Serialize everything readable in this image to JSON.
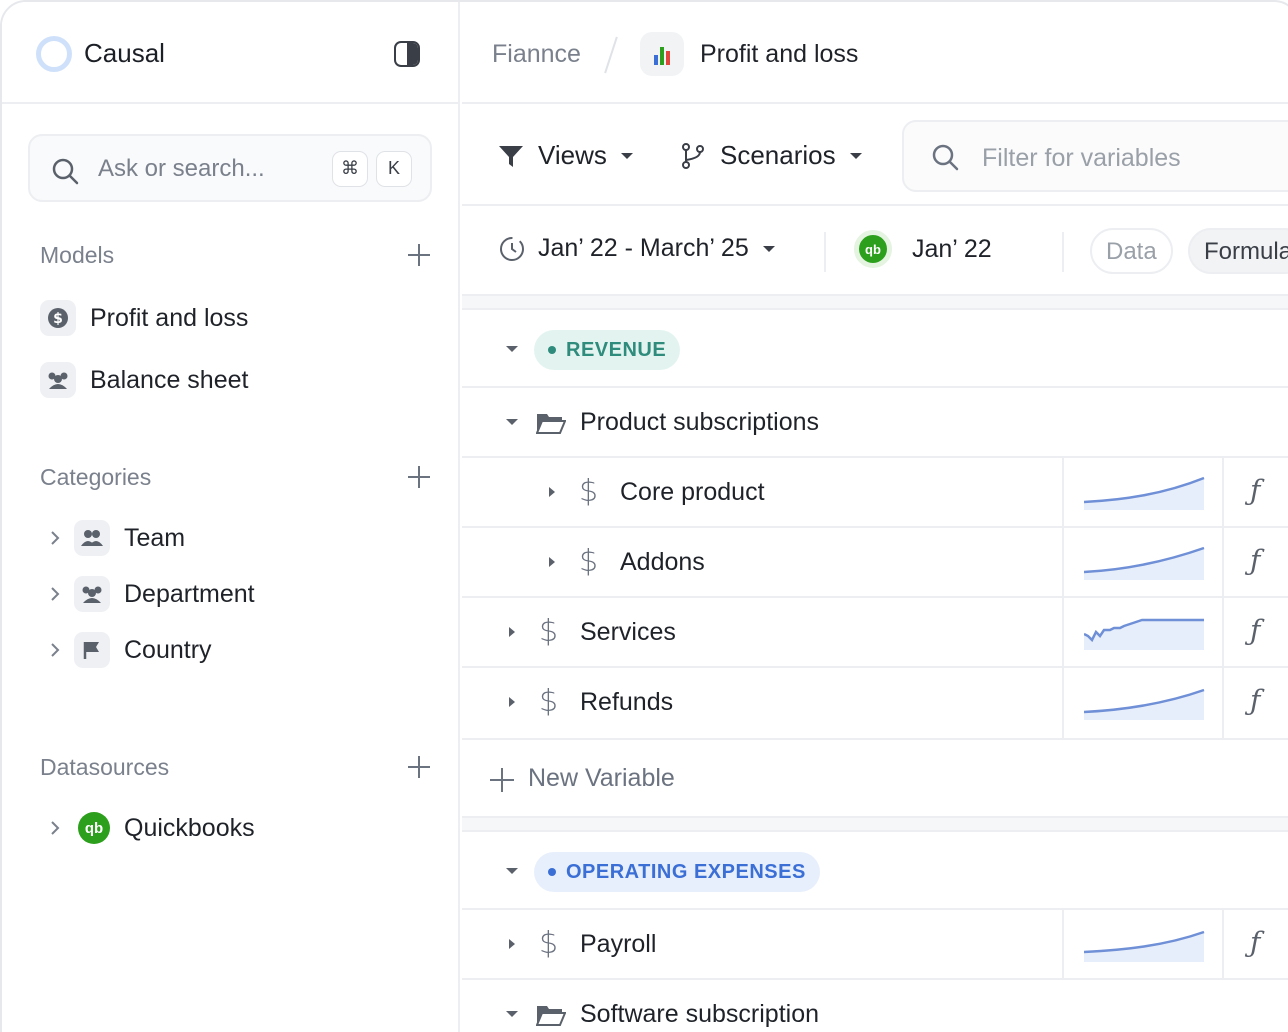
{
  "brand": {
    "name": "Causal"
  },
  "search": {
    "placeholder": "Ask or search...",
    "shortcut_mod": "⌘",
    "shortcut_key": "K"
  },
  "sidebar": {
    "models": {
      "title": "Models",
      "items": [
        {
          "label": "Profit and loss",
          "icon": "dollar-icon"
        },
        {
          "label": "Balance sheet",
          "icon": "people-icon"
        }
      ]
    },
    "categories": {
      "title": "Categories",
      "items": [
        {
          "label": "Team",
          "icon": "team-icon"
        },
        {
          "label": "Department",
          "icon": "department-icon"
        },
        {
          "label": "Country",
          "icon": "flag-icon"
        }
      ]
    },
    "datasources": {
      "title": "Datasources",
      "items": [
        {
          "label": "Quickbooks",
          "icon": "quickbooks-icon"
        }
      ]
    }
  },
  "breadcrumb": {
    "parent": "Fiannce",
    "current": "Profit and loss"
  },
  "toolbar": {
    "views": "Views",
    "scenarios": "Scenarios",
    "filter_placeholder": "Filter for variables"
  },
  "datebar": {
    "range": "Jan’ 22 - March’ 25",
    "actuals_date": "Jan’ 22",
    "data_pill": "Data",
    "formula_pill": "Formula"
  },
  "groups": {
    "revenue": {
      "label": "REVENUE",
      "color": "#2f8c7d",
      "bg": "#e3f4f0",
      "folder": "Product subscriptions",
      "children": [
        {
          "label": "Core product"
        },
        {
          "label": "Addons"
        }
      ],
      "rows": [
        {
          "label": "Services"
        },
        {
          "label": "Refunds"
        }
      ]
    },
    "opex": {
      "label": "OPERATING EXPENSES",
      "color": "#3b6fd6",
      "bg": "#e7effc",
      "rows": [
        {
          "label": "Payroll"
        }
      ],
      "folder": "Software subscription"
    }
  },
  "new_variable": "New Variable",
  "formula_symbol": "ƒ",
  "accent": "#6f8fd6"
}
